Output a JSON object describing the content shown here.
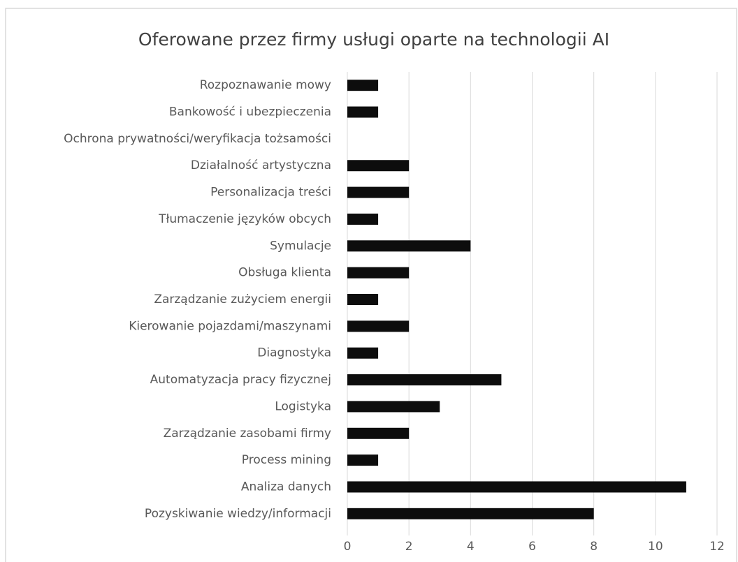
{
  "chart_data": {
    "type": "hbar",
    "title": "Oferowane przez firmy usługi oparte na technologii AI",
    "categories": [
      "Rozpoznawanie mowy",
      "Bankowość i ubezpieczenia",
      "Ochrona prywatności/weryfikacja tożsamości",
      "Działalność artystyczna",
      "Personalizacja treści",
      "Tłumaczenie języków obcych",
      "Symulacje",
      "Obsługa klienta",
      "Zarządzanie zużyciem energii",
      "Kierowanie pojazdami/maszynami",
      "Diagnostyka",
      "Automatyzacja pracy fizycznej",
      "Logistyka",
      "Zarządzanie zasobami firmy",
      "Process mining",
      "Analiza danych",
      "Pozyskiwanie wiedzy/informacji"
    ],
    "values": [
      1,
      1,
      0,
      2,
      2,
      1,
      4,
      2,
      1,
      2,
      1,
      5,
      3,
      2,
      1,
      11,
      8
    ],
    "color": "#0d0d0d",
    "xlim": [
      0,
      12
    ],
    "xticks": [
      0,
      2,
      4,
      6,
      8,
      10,
      12
    ],
    "grid": true
  }
}
